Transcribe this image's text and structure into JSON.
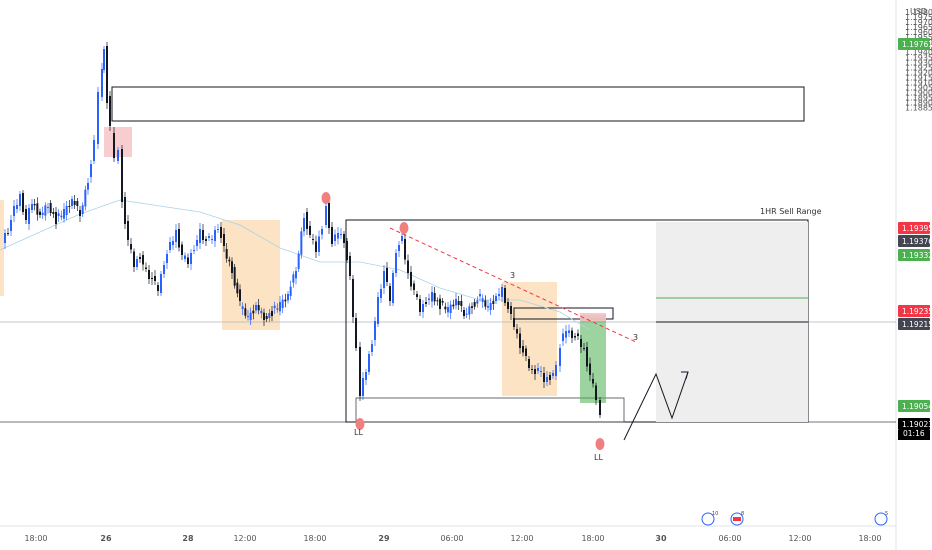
{
  "chart_data": {
    "type": "candlestick",
    "currency": "USD",
    "y_ticks": [
      "1.19800",
      "1.19750",
      "1.19700",
      "1.19650",
      "1.19600",
      "1.19550",
      "1.19500",
      "1.19450",
      "1.19400",
      "1.19350",
      "1.19300",
      "1.19250",
      "1.19200",
      "1.19150",
      "1.19100",
      "1.19050",
      "1.19000",
      "1.18950",
      "1.18900",
      "1.18850"
    ],
    "x_ticks": [
      "18:00",
      "26",
      "28",
      "12:00",
      "18:00",
      "29",
      "06:00",
      "12:00",
      "18:00",
      "30",
      "06:00",
      "12:00",
      "18:00"
    ],
    "price_tags": [
      {
        "label": "1.19761",
        "color": "#4caf50"
      },
      {
        "label": "1.19395",
        "color": "#f23645"
      },
      {
        "label": "1.19376",
        "color": "#434651"
      },
      {
        "label": "1.19332",
        "color": "#4caf50"
      },
      {
        "label": "1.19235",
        "color": "#f23645"
      },
      {
        "label": "1.19215",
        "color": "#434651"
      },
      {
        "label": "1.19054",
        "color": "#4caf50"
      },
      {
        "label": "1.19023",
        "color": "#000000"
      }
    ],
    "countdown": "01:16",
    "annotations": {
      "sell_range": "1HR Sell Range",
      "low_labels": [
        "LL",
        "LL"
      ],
      "trend_label": "3",
      "mid_label": "3"
    },
    "event_badges": [
      "10",
      "8",
      "5"
    ],
    "colors": {
      "up": "#2962ff",
      "down": "#131722",
      "zone": "#fbe3c4",
      "sell": "#f6c1c4",
      "buy_box": "#4caf50",
      "range_bg": "#eeeeee"
    }
  }
}
